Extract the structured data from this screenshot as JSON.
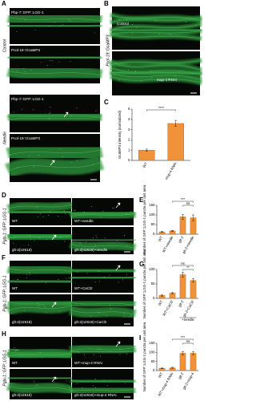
{
  "panels": {
    "A": {
      "label": "A",
      "conditions": [
        "Control",
        "Needle"
      ],
      "reporters": [
        "Pbp-7::GFP::LGG-1",
        "Pcol-19::GcaMP3"
      ]
    },
    "B": {
      "label": "B",
      "reporter": "Pcol-19::GcaMP3",
      "images": [
        "Control",
        "mup-4 RNAi"
      ]
    },
    "D": {
      "label": "D",
      "reporter": "Pglp-1::GFP::LGG-1",
      "images": [
        "WT",
        "WT+needle",
        "glt-2(n2618)",
        "glt-2(n2618)+needle"
      ]
    },
    "F": {
      "label": "F",
      "reporter": "Pglp-1::GFP::LGG-1",
      "images": [
        "WT",
        "WT+CaCl2",
        "glt-2(n2618)",
        "glt-2(n2618)+CaCl2"
      ]
    },
    "H": {
      "label": "H",
      "reporter": "Pglp-1::GFP::LGG-1",
      "images": [
        "WT",
        "WT+mup-4 RNAi",
        "glt-2(n2618)",
        "glt-2(n2618)+mup-4 RNAi"
      ]
    }
  },
  "chart_data": [
    {
      "type": "bar",
      "panel": "C",
      "ylabel": "GcaMP3 intensity (normalized)",
      "categories": [
        "WT",
        "mup-4 RNAi"
      ],
      "values": [
        1.0,
        3.6
      ],
      "errors": [
        0.1,
        0.3
      ],
      "color": "#f0923a",
      "ylim": [
        0,
        5
      ],
      "yticks": [
        0,
        1,
        2,
        3,
        4,
        5
      ],
      "annotations": [
        "****"
      ]
    },
    {
      "type": "bar",
      "panel": "E",
      "ylabel": "Number of GFP::LGG-1 puncta per unit area",
      "categories": [
        "WT",
        "WT+needle",
        "glt-2",
        "glt-2+needle"
      ],
      "values": [
        12,
        17,
        90,
        85
      ],
      "errors": [
        2,
        3,
        12,
        15
      ],
      "color": "#f0923a",
      "ylim": [
        0,
        150
      ],
      "yticks": [
        0,
        50,
        100,
        150
      ],
      "annotations": [
        "***",
        "ns"
      ]
    },
    {
      "type": "bar",
      "panel": "G",
      "ylabel": "Number of GFP::LGG-1 puncta per unit area",
      "categories": [
        "WT",
        "WT+CaCl2",
        "glt-2",
        "glt-2+CaCl2"
      ],
      "values": [
        10,
        18,
        82,
        62
      ],
      "errors": [
        2,
        3,
        8,
        6
      ],
      "color": "#f0923a",
      "ylim": [
        0,
        100
      ],
      "yticks": [
        0,
        50,
        100
      ],
      "annotations": [
        "ns",
        "**"
      ],
      "group_label": "+needle"
    },
    {
      "type": "bar",
      "panel": "I",
      "ylabel": "Number of GFP::LGG-1 puncta per unit area",
      "categories": [
        "WT",
        "WT+mup-4 RNAi",
        "glt-2",
        "glt-2+mup-4"
      ],
      "values": [
        12,
        15,
        95,
        95
      ],
      "errors": [
        2,
        3,
        10,
        8
      ],
      "color": "#f0923a",
      "ylim": [
        0,
        150
      ],
      "yticks": [
        0,
        50,
        100,
        150
      ],
      "annotations": [
        "***",
        "ns"
      ]
    }
  ]
}
